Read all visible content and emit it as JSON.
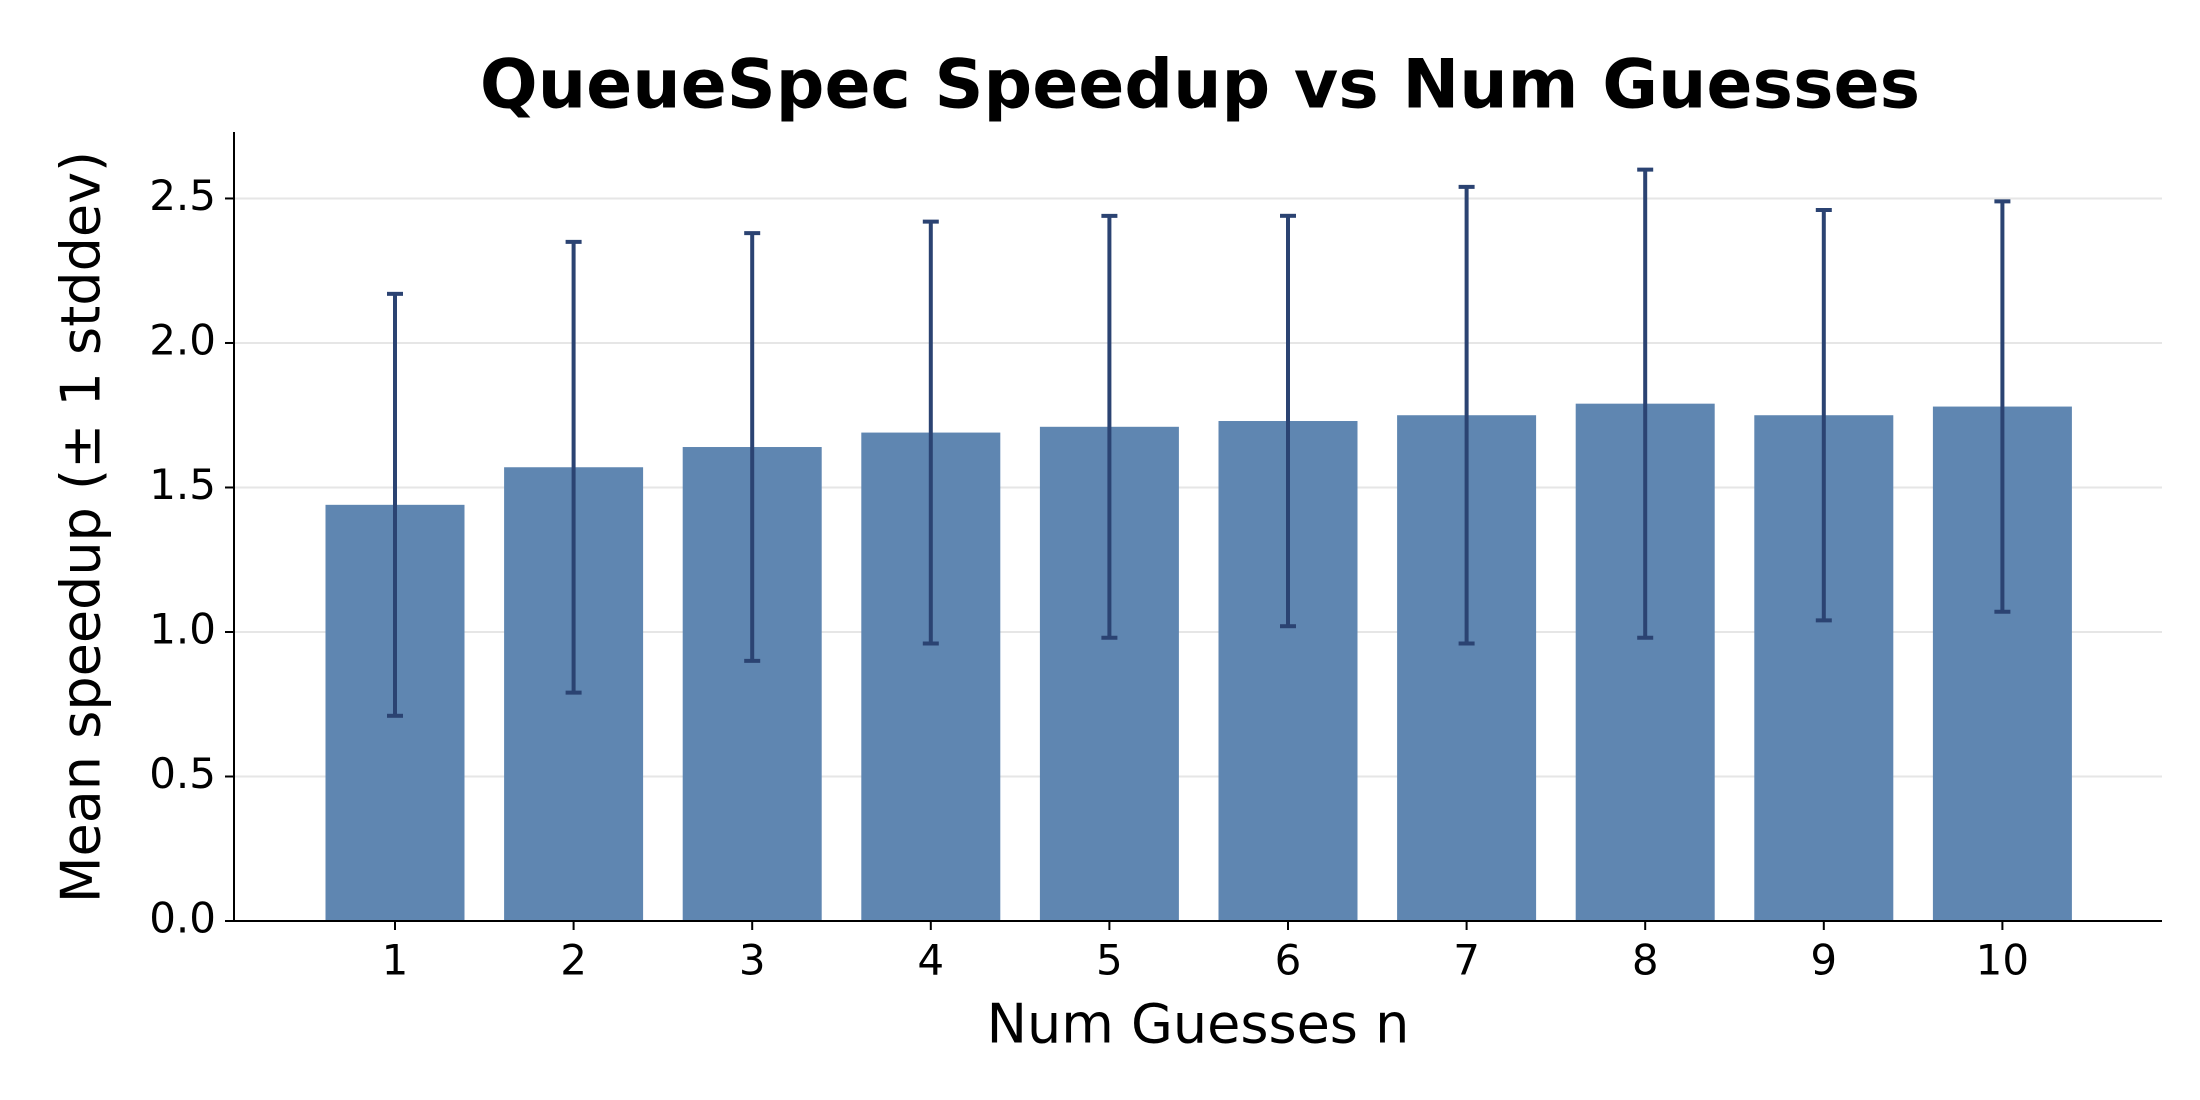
{
  "chart_data": {
    "type": "bar",
    "title": "QueueSpec Speedup vs Num Guesses",
    "x_label": "Num Guesses n",
    "y_label": "Mean speedup (± 1 stddev)",
    "categories": [
      "1",
      "2",
      "3",
      "4",
      "5",
      "6",
      "7",
      "8",
      "9",
      "10"
    ],
    "series": [
      {
        "color": "#5f86b1",
        "error_color": "#2b4372",
        "values": [
          1.44,
          1.57,
          1.64,
          1.69,
          1.71,
          1.73,
          1.75,
          1.79,
          1.75,
          1.78
        ],
        "errors": [
          0.73,
          0.78,
          0.74,
          0.73,
          0.73,
          0.71,
          0.79,
          0.81,
          0.71,
          0.71
        ]
      }
    ],
    "ylim": [
      0,
      2.73
    ],
    "yticks": [
      {
        "value": 0,
        "label": "0.0"
      },
      0.5,
      {
        "value": 1,
        "label": "1.0"
      },
      1.5,
      {
        "value": 2,
        "label": "2.0"
      },
      2.5
    ],
    "grid": true
  }
}
